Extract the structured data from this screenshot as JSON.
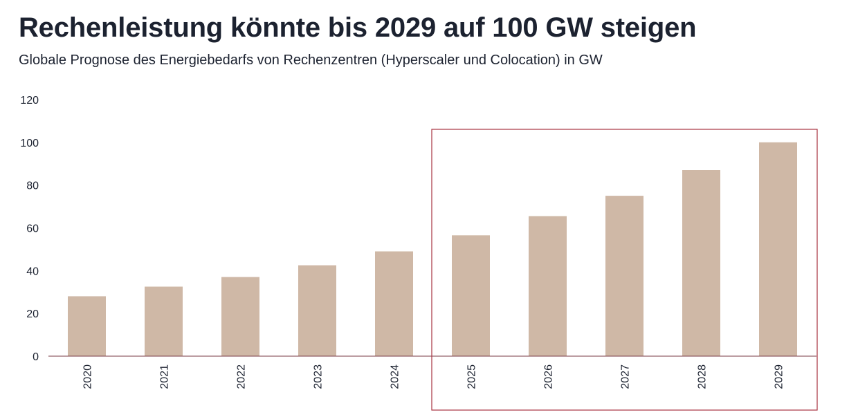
{
  "header": {
    "title": "Rechenleistung könnte bis 2029 auf 100 GW steigen",
    "subtitle": "Globale Prognose des Energiebedarfs von Rechenzentren (Hyperscaler und Colocation) in GW"
  },
  "colors": {
    "bar": "#cfb8a6",
    "axis": "#7a3b45",
    "highlight_box": "#a83240",
    "text": "#1c2230"
  },
  "chart_data": {
    "type": "bar",
    "title": "Rechenleistung könnte bis 2029 auf 100 GW steigen",
    "subtitle": "Globale Prognose des Energiebedarfs von Rechenzentren (Hyperscaler und Colocation) in GW",
    "xlabel": "",
    "ylabel": "",
    "categories": [
      "2020",
      "2021",
      "2022",
      "2023",
      "2024",
      "2025",
      "2026",
      "2027",
      "2028",
      "2029"
    ],
    "values": [
      28,
      32.5,
      37,
      42.5,
      49,
      56.5,
      65.5,
      75,
      87,
      100
    ],
    "ylim": [
      0,
      120
    ],
    "yticks": [
      0,
      20,
      40,
      60,
      80,
      100,
      120
    ],
    "grid": false,
    "legend": "none",
    "highlight_range": [
      "2025",
      "2029"
    ]
  }
}
